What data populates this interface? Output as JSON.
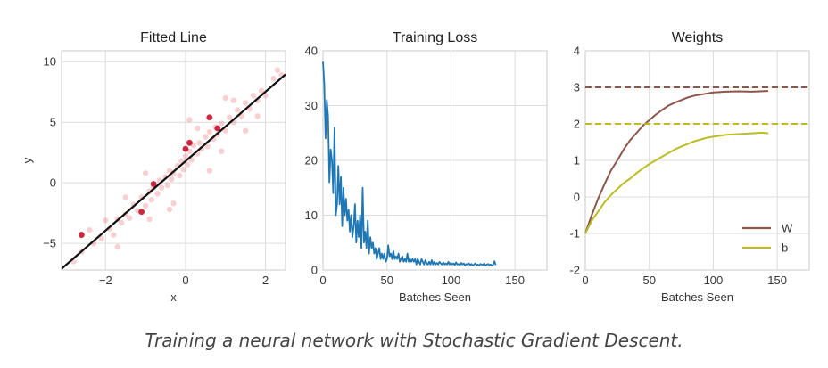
{
  "caption": "Training a neural network with Stochastic Gradient Descent.",
  "charts": {
    "fitted": {
      "type": "scatter",
      "title": "Fitted Line",
      "xlabel": "x",
      "ylabel": "y",
      "xlim": [
        -3.1,
        2.5
      ],
      "ylim": [
        -7.2,
        10.9
      ],
      "xticks": [
        -2,
        0,
        2
      ],
      "yticks": [
        -5,
        0,
        5,
        10
      ],
      "grid": true,
      "line_color": "#111111",
      "point_color": "#e8555c",
      "highlight_color": "#c8102e",
      "fit_line": {
        "x": [
          -3.1,
          2.5
        ],
        "y": [
          -7.1,
          8.95
        ]
      },
      "points_background": [
        [
          -2.6,
          -5.7
        ],
        [
          -2.3,
          -5.0
        ],
        [
          -2.1,
          -4.6
        ],
        [
          -1.9,
          -3.8
        ],
        [
          -1.8,
          -4.3
        ],
        [
          -1.7,
          -3.0
        ],
        [
          -1.6,
          -3.3
        ],
        [
          -1.5,
          -2.6
        ],
        [
          -1.4,
          -2.9
        ],
        [
          -1.3,
          -1.8
        ],
        [
          -1.2,
          -2.3
        ],
        [
          -1.1,
          -1.2
        ],
        [
          -1.0,
          -1.9
        ],
        [
          -0.9,
          -0.7
        ],
        [
          -0.85,
          -1.4
        ],
        [
          -0.8,
          -0.4
        ],
        [
          -0.7,
          -0.9
        ],
        [
          -0.65,
          0.2
        ],
        [
          -0.6,
          -0.4
        ],
        [
          -0.5,
          0.5
        ],
        [
          -0.45,
          -0.2
        ],
        [
          -0.4,
          1.0
        ],
        [
          -0.35,
          0.3
        ],
        [
          -0.3,
          0.8
        ],
        [
          -0.2,
          1.4
        ],
        [
          -0.15,
          0.6
        ],
        [
          -0.1,
          1.8
        ],
        [
          -0.05,
          1.1
        ],
        [
          0.0,
          2.2
        ],
        [
          0.05,
          1.5
        ],
        [
          0.1,
          2.6
        ],
        [
          0.15,
          1.9
        ],
        [
          0.2,
          3.1
        ],
        [
          0.3,
          2.4
        ],
        [
          0.35,
          3.3
        ],
        [
          0.4,
          2.8
        ],
        [
          0.5,
          3.8
        ],
        [
          0.55,
          3.0
        ],
        [
          0.6,
          4.2
        ],
        [
          0.7,
          3.6
        ],
        [
          0.75,
          4.6
        ],
        [
          0.8,
          4.0
        ],
        [
          0.9,
          4.9
        ],
        [
          1.0,
          4.3
        ],
        [
          1.1,
          5.4
        ],
        [
          1.2,
          5.0
        ],
        [
          1.3,
          6.0
        ],
        [
          1.4,
          5.5
        ],
        [
          1.5,
          6.6
        ],
        [
          1.6,
          6.1
        ],
        [
          1.7,
          7.2
        ],
        [
          1.8,
          6.8
        ],
        [
          1.9,
          7.6
        ],
        [
          2.0,
          7.2
        ],
        [
          2.2,
          8.6
        ],
        [
          2.3,
          9.3
        ],
        [
          2.4,
          8.9
        ],
        [
          -2.8,
          -6.5
        ],
        [
          -1.0,
          0.8
        ],
        [
          -1.5,
          -1.2
        ],
        [
          0.3,
          4.5
        ],
        [
          0.9,
          2.6
        ],
        [
          1.5,
          4.3
        ],
        [
          -0.3,
          -1.7
        ],
        [
          -2.0,
          -3.1
        ],
        [
          1.2,
          6.8
        ],
        [
          -0.9,
          -3.0
        ],
        [
          0.6,
          1.0
        ],
        [
          1.8,
          5.5
        ],
        [
          -1.7,
          -5.3
        ],
        [
          0.1,
          5.2
        ],
        [
          -0.4,
          -2.2
        ],
        [
          1.0,
          7.0
        ],
        [
          -2.4,
          -3.9
        ]
      ],
      "points_highlight": [
        [
          -2.6,
          -4.3
        ],
        [
          -1.1,
          -2.4
        ],
        [
          -0.8,
          -0.1
        ],
        [
          0.0,
          2.8
        ],
        [
          0.1,
          3.3
        ],
        [
          0.6,
          5.4
        ],
        [
          0.8,
          4.5
        ]
      ]
    },
    "loss": {
      "type": "line",
      "title": "Training Loss",
      "xlabel": "Batches Seen",
      "ylabel": "",
      "xlim": [
        0,
        175
      ],
      "ylim": [
        0,
        40
      ],
      "xticks": [
        0,
        50,
        100,
        150
      ],
      "yticks": [
        0,
        10,
        20,
        30,
        40
      ],
      "grid": true,
      "color": "#1f77b4",
      "x_start": 0,
      "x_step": 1,
      "values": [
        38,
        34,
        24,
        31,
        28,
        16,
        22,
        20,
        14,
        26,
        10,
        12,
        19,
        12,
        17,
        8,
        15,
        10,
        13,
        9,
        11,
        7,
        10,
        6,
        8,
        12,
        5,
        9,
        6,
        10,
        4,
        15,
        5,
        7,
        4,
        9,
        3,
        6,
        4,
        5,
        3,
        4,
        2,
        3,
        4,
        2,
        3,
        2,
        3,
        1.5,
        2,
        4.5,
        2.5,
        3,
        2,
        3.5,
        2,
        2.5,
        2,
        3,
        1.5,
        2,
        2.5,
        1.5,
        2,
        1.5,
        3,
        1.5,
        2,
        1.5,
        2,
        1.5,
        2,
        1,
        2,
        1.5,
        1,
        2,
        1.5,
        1,
        1.8,
        1.2,
        1,
        1.5,
        1,
        1.8,
        1,
        1.5,
        1,
        1.3,
        1,
        1.5,
        1.2,
        1,
        1.4,
        1,
        1.2,
        1,
        1.5,
        1,
        1.3,
        1,
        1.2,
        0.9,
        1.4,
        1,
        1.1,
        0.9,
        1.3,
        1,
        1.2,
        0.8,
        1.1,
        1,
        1.2,
        0.9,
        1.1,
        0.8,
        1,
        1.2,
        0.9,
        1,
        0.8,
        1.1,
        1,
        0.9,
        1.2,
        0.8,
        1,
        1.1,
        0.9,
        1,
        0.8,
        1,
        1.6,
        0.9
      ]
    },
    "weights": {
      "type": "line",
      "title": "Weights",
      "xlabel": "Batches Seen",
      "ylabel": "",
      "xlim": [
        0,
        175
      ],
      "ylim": [
        -2,
        4
      ],
      "xticks": [
        0,
        50,
        100,
        150
      ],
      "yticks": [
        -2,
        -1,
        0,
        1,
        2,
        3,
        4
      ],
      "grid": true,
      "legend_position": "lower-right",
      "series": [
        {
          "name": "W",
          "color": "#8c564b",
          "points": [
            [
              0,
              -1.0
            ],
            [
              5,
              -0.5
            ],
            [
              10,
              -0.05
            ],
            [
              15,
              0.35
            ],
            [
              20,
              0.72
            ],
            [
              25,
              1.0
            ],
            [
              30,
              1.3
            ],
            [
              35,
              1.55
            ],
            [
              40,
              1.75
            ],
            [
              45,
              1.95
            ],
            [
              50,
              2.1
            ],
            [
              55,
              2.25
            ],
            [
              60,
              2.38
            ],
            [
              65,
              2.5
            ],
            [
              70,
              2.58
            ],
            [
              75,
              2.65
            ],
            [
              80,
              2.72
            ],
            [
              85,
              2.77
            ],
            [
              90,
              2.8
            ],
            [
              95,
              2.83
            ],
            [
              100,
              2.86
            ],
            [
              110,
              2.88
            ],
            [
              120,
              2.89
            ],
            [
              130,
              2.88
            ],
            [
              143,
              2.9
            ]
          ],
          "target": 3.0
        },
        {
          "name": "b",
          "color": "#bcbd22",
          "points": [
            [
              0,
              -1.0
            ],
            [
              5,
              -0.65
            ],
            [
              10,
              -0.4
            ],
            [
              15,
              -0.15
            ],
            [
              20,
              0.05
            ],
            [
              25,
              0.22
            ],
            [
              30,
              0.38
            ],
            [
              35,
              0.5
            ],
            [
              40,
              0.65
            ],
            [
              45,
              0.78
            ],
            [
              50,
              0.9
            ],
            [
              55,
              1.0
            ],
            [
              60,
              1.1
            ],
            [
              65,
              1.2
            ],
            [
              70,
              1.3
            ],
            [
              75,
              1.38
            ],
            [
              80,
              1.45
            ],
            [
              85,
              1.52
            ],
            [
              90,
              1.57
            ],
            [
              95,
              1.62
            ],
            [
              100,
              1.65
            ],
            [
              110,
              1.7
            ],
            [
              120,
              1.72
            ],
            [
              130,
              1.74
            ],
            [
              138,
              1.76
            ],
            [
              143,
              1.74
            ]
          ],
          "target": 2.0
        }
      ]
    }
  }
}
